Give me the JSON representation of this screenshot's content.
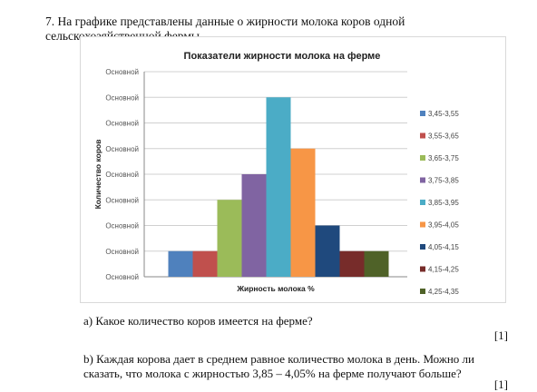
{
  "problem": {
    "text": "7. На графике представлены данные о жирности молока коров одной сельскохозяйственной фермы."
  },
  "questions": {
    "a": {
      "text": "a) Какое количество коров имеется на ферме?",
      "mark": "[1]"
    },
    "b": {
      "text": "b) Каждая корова дает в среднем равное количество молока в день. Можно ли сказать, что молока с жирностью 3,85 – 4,05% на ферме получают больше?",
      "mark": "[1]"
    }
  },
  "chart_data": {
    "type": "bar",
    "title": "Показатели жирности молока на ферме",
    "xlabel": "Жирность молока %",
    "ylabel": "Количество коров",
    "ytick_labels": [
      "Основной",
      "Основной",
      "Основной",
      "Основной",
      "Основной",
      "Основной",
      "Основной",
      "Основной",
      "Основной"
    ],
    "ylim": [
      0,
      8
    ],
    "grid": true,
    "legend_position": "right",
    "series": [
      {
        "name": "3,45-3,55",
        "value": 1,
        "color": "#4f81bd"
      },
      {
        "name": "3,55-3,65",
        "value": 1,
        "color": "#c0504d"
      },
      {
        "name": "3,65-3,75",
        "value": 3,
        "color": "#9bbb59"
      },
      {
        "name": "3,75-3,85",
        "value": 4,
        "color": "#8064a2"
      },
      {
        "name": "3,85-3,95",
        "value": 7,
        "color": "#4bacc6"
      },
      {
        "name": "3,95-4,05",
        "value": 5,
        "color": "#f79646"
      },
      {
        "name": "4,05-4,15",
        "value": 2,
        "color": "#1f497d"
      },
      {
        "name": "4,15-4,25",
        "value": 1,
        "color": "#772c2a"
      },
      {
        "name": "4,25-4,35",
        "value": 1,
        "color": "#4f6228"
      }
    ]
  }
}
